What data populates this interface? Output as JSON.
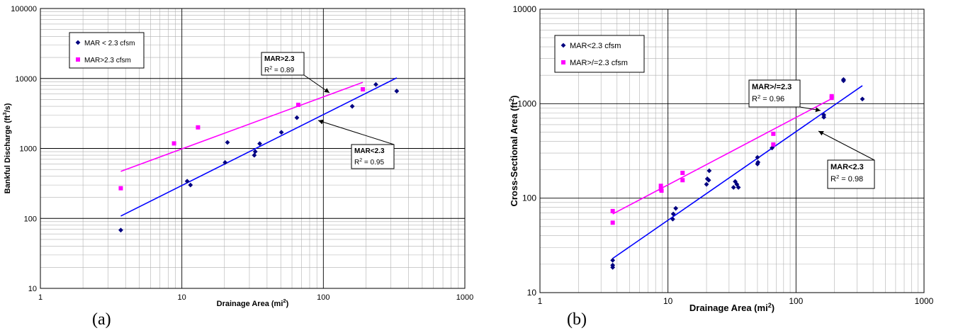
{
  "chart_data": [
    {
      "panel_label": "(a)",
      "type": "scatter",
      "log_x": true,
      "log_y": true,
      "xlim": [
        1,
        1000
      ],
      "ylim": [
        10,
        100000
      ],
      "x_ticks": [
        "1",
        "10",
        "100",
        "1000"
      ],
      "y_ticks": [
        "10",
        "100",
        "1000",
        "10000",
        "100000"
      ],
      "xlabel": {
        "main": "Drainage Area (mi",
        "sup": "2",
        "end": ")"
      },
      "ylabel": {
        "main": "Bankful Discharge (ft",
        "sup": "3",
        "end": "/s)"
      },
      "legend_placement": "top-left",
      "series": [
        {
          "name": "MAR < 2.3 cfsm",
          "color": "#000080",
          "marker": "diamond",
          "points": [
            [
              3.7,
              68
            ],
            [
              10.9,
              340
            ],
            [
              11.5,
              300
            ],
            [
              20.2,
              630
            ],
            [
              21.0,
              1220
            ],
            [
              32.5,
              800
            ],
            [
              33.0,
              900
            ],
            [
              35.5,
              1170
            ],
            [
              50.5,
              1700
            ],
            [
              65.0,
              2750
            ],
            [
              160,
              4000
            ],
            [
              235,
              8200
            ],
            [
              330,
              6600
            ]
          ],
          "trendline": {
            "x": [
              3.7,
              330
            ],
            "y": [
              108,
              10200
            ],
            "color": "#0000ff"
          }
        },
        {
          "name": "MAR>2.3 cfsm",
          "color": "#ff00ff",
          "marker": "square",
          "points": [
            [
              3.7,
              270
            ],
            [
              8.8,
              1180
            ],
            [
              13.0,
              2000
            ],
            [
              66.5,
              4200
            ],
            [
              190,
              7000
            ]
          ],
          "trendline": {
            "x": [
              3.7,
              190
            ],
            "y": [
              470,
              8800
            ],
            "color": "#ff00ff"
          }
        }
      ],
      "annotations": [
        {
          "title": "MAR>2.3",
          "r2": "= 0.89"
        },
        {
          "title": "MAR<2.3",
          "r2": "= 0.95"
        }
      ]
    },
    {
      "panel_label": "(b)",
      "type": "scatter",
      "log_x": true,
      "log_y": true,
      "xlim": [
        1,
        1000
      ],
      "ylim": [
        10,
        10000
      ],
      "x_ticks": [
        "1",
        "10",
        "100",
        "1000"
      ],
      "y_ticks": [
        "10",
        "100",
        "1000",
        "10000"
      ],
      "xlabel": {
        "main": "Drainage Area (mi",
        "sup": "2",
        "end": ")"
      },
      "ylabel": {
        "main": "Cross-Sectional Area (ft",
        "sup": "2",
        "end": ")"
      },
      "legend_placement": "top-left",
      "series": [
        {
          "name": "MAR<2.3 cfsm",
          "color": "#000080",
          "marker": "diamond",
          "points": [
            [
              3.7,
              22
            ],
            [
              3.7,
              19.5
            ],
            [
              3.7,
              18.5
            ],
            [
              10.9,
              60
            ],
            [
              11.0,
              68
            ],
            [
              11.5,
              78
            ],
            [
              20.0,
              140
            ],
            [
              20.3,
              160
            ],
            [
              20.8,
              155
            ],
            [
              21.0,
              195
            ],
            [
              32.5,
              130
            ],
            [
              33.5,
              150
            ],
            [
              34.5,
              140
            ],
            [
              35.5,
              130
            ],
            [
              50.0,
              230
            ],
            [
              50.5,
              240
            ],
            [
              50.0,
              270
            ],
            [
              65.0,
              340
            ],
            [
              165,
              720
            ],
            [
              165,
              760
            ],
            [
              235,
              1800
            ],
            [
              235,
              1750
            ],
            [
              330,
              1120
            ]
          ],
          "trendline": {
            "x": [
              3.7,
              330
            ],
            "y": [
              23,
              1550
            ],
            "color": "#0000ff"
          }
        },
        {
          "name": "MAR>/=2.3 cfsm",
          "color": "#ff00ff",
          "marker": "square",
          "points": [
            [
              3.7,
              73
            ],
            [
              3.7,
              55
            ],
            [
              8.8,
              135
            ],
            [
              8.8,
              125
            ],
            [
              8.9,
              120
            ],
            [
              13.0,
              185
            ],
            [
              13.0,
              155
            ],
            [
              66.5,
              480
            ],
            [
              66.5,
              370
            ],
            [
              190,
              1200
            ],
            [
              190,
              1150
            ]
          ],
          "trendline": {
            "x": [
              3.7,
              190
            ],
            "y": [
              68,
              1130
            ],
            "color": "#ff00ff"
          }
        }
      ],
      "annotations": [
        {
          "title": "MAR>/=2.3",
          "r2": "= 0.96"
        },
        {
          "title": "MAR<2.3",
          "r2": "= 0.98"
        }
      ]
    }
  ]
}
